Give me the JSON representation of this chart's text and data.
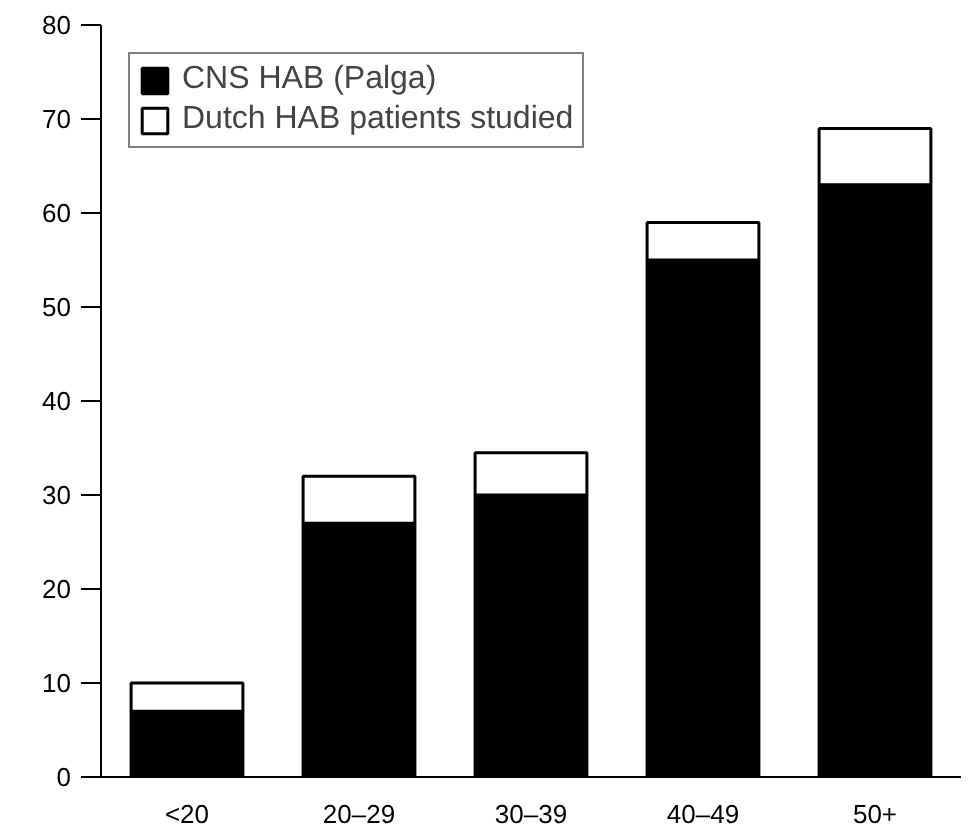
{
  "chart_data": {
    "type": "bar",
    "stacked": true,
    "categories": [
      "<20",
      "20–29",
      "30–39",
      "40–49",
      "50+"
    ],
    "series": [
      {
        "name": "CNS HAB (Palga)",
        "color": "#000000",
        "values": [
          7,
          27,
          30,
          55,
          63
        ]
      },
      {
        "name": "Dutch HAB patients studied",
        "color": "#ffffff",
        "values": [
          3,
          5,
          4.5,
          4,
          6
        ]
      }
    ],
    "ylim": [
      0,
      80
    ],
    "yticks": [
      0,
      10,
      20,
      30,
      40,
      50,
      60,
      70,
      80
    ],
    "grid": false,
    "legend": "top left"
  }
}
